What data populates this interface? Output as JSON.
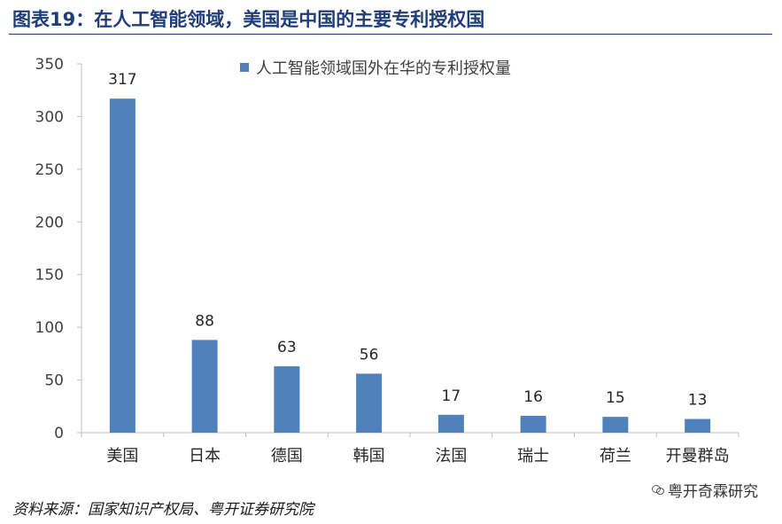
{
  "header": {
    "title": "图表19：在人工智能领域，美国是中国的主要专利授权国"
  },
  "chart_data": {
    "type": "bar",
    "categories": [
      "美国",
      "日本",
      "德国",
      "韩国",
      "法国",
      "瑞士",
      "荷兰",
      "开曼群岛"
    ],
    "series": [
      {
        "name": "人工智能领域国外在华的专利授权量",
        "values": [
          317,
          88,
          63,
          56,
          17,
          16,
          15,
          13
        ]
      }
    ],
    "ylim": [
      0,
      350
    ],
    "yticks": [
      0,
      50,
      100,
      150,
      200,
      250,
      300,
      350
    ],
    "xlabel": "",
    "ylabel": "",
    "legend_position": "top",
    "grid": false,
    "bar_color": "#4f81bd",
    "data_labels": true
  },
  "footer": {
    "source": "资料来源：国家知识产权局、粤开证券研究院",
    "watermark": "粤开奇霖研究"
  },
  "colors": {
    "title": "#1f3d7a",
    "bar": "#4f81bd",
    "axis": "#bfbfbf"
  }
}
